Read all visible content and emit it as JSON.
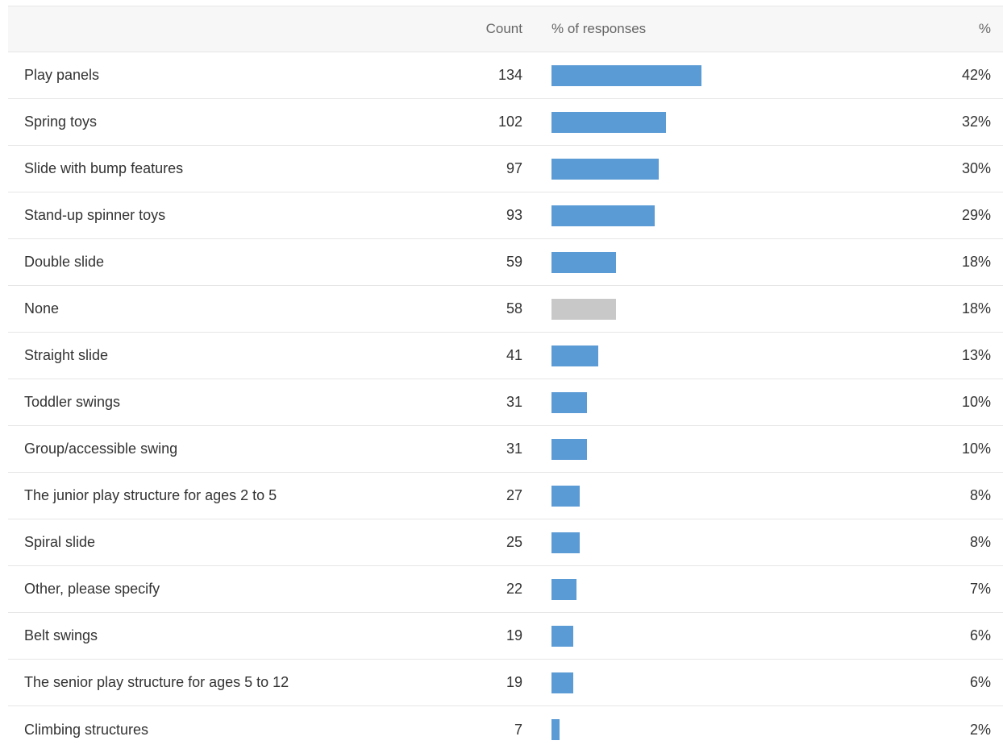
{
  "header": {
    "count": "Count",
    "responses": "% of responses",
    "percent": "%"
  },
  "colors": {
    "bar": "#5b9bd5",
    "none_bar": "#c8c8c8"
  },
  "chart_data": {
    "type": "bar",
    "orientation": "horizontal",
    "categories": [
      "Play panels",
      "Spring toys",
      "Slide with bump features",
      "Stand-up spinner toys",
      "Double slide",
      "None",
      "Straight slide",
      "Toddler swings",
      "Group/accessible swing",
      "The junior play structure for ages 2 to 5",
      "Spiral slide",
      "Other, please specify",
      "Belt swings",
      "The senior play structure for ages 5 to 12",
      "Climbing structures"
    ],
    "counts": [
      134,
      102,
      97,
      93,
      59,
      58,
      41,
      31,
      31,
      27,
      25,
      22,
      19,
      19,
      7
    ],
    "values": [
      42,
      32,
      30,
      29,
      18,
      18,
      13,
      10,
      10,
      8,
      8,
      7,
      6,
      6,
      2
    ],
    "percent_labels": [
      "42%",
      "32%",
      "30%",
      "29%",
      "18%",
      "18%",
      "13%",
      "10%",
      "10%",
      "8%",
      "8%",
      "7%",
      "6%",
      "6%",
      "2%"
    ],
    "title": "",
    "xlabel": "% of responses",
    "ylabel": ""
  }
}
